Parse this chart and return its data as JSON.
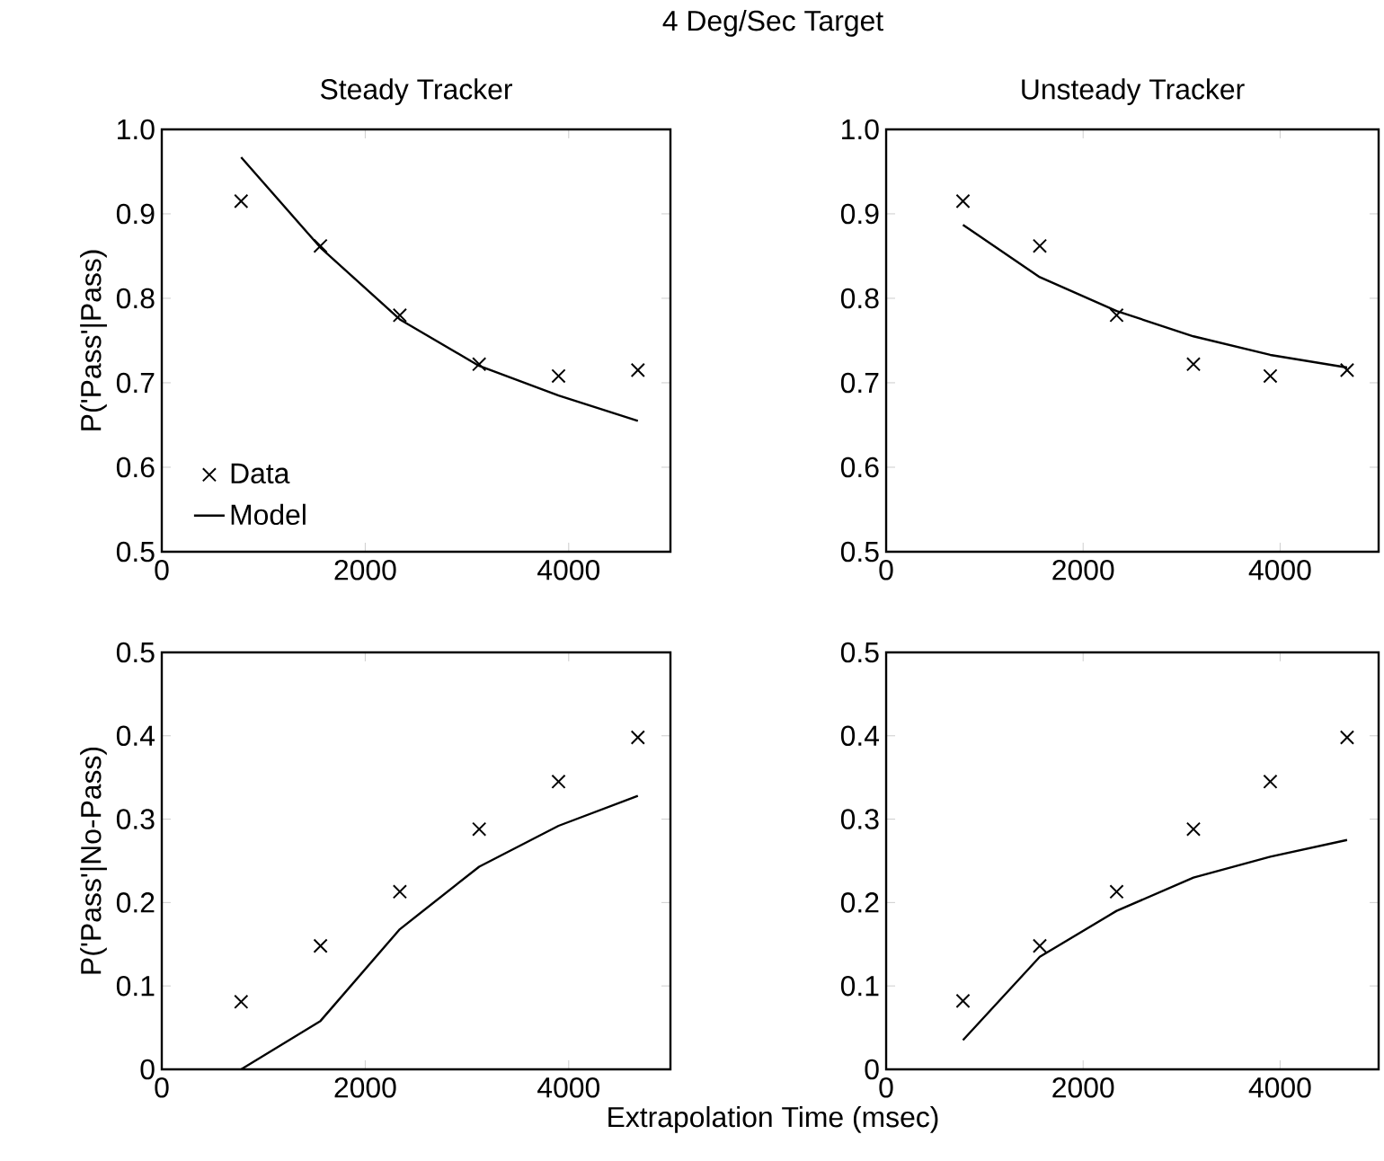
{
  "chart_data": [
    {
      "type": "line",
      "title": "Steady Tracker",
      "ylabel": "P('Pass'|Pass)",
      "annotations": [
        "4 Deg/Sec Target"
      ],
      "x": [
        780,
        1560,
        2340,
        3120,
        3900,
        4680
      ],
      "xlim": [
        0,
        5000
      ],
      "xticks": [
        0,
        2000,
        4000
      ],
      "ylim": [
        0.5,
        1
      ],
      "yticks": [
        0.5,
        0.6,
        0.7,
        0.8,
        0.9,
        {
          "value": 1,
          "label": "1.0"
        }
      ],
      "legend": "bottom left",
      "series": [
        {
          "name": "Data",
          "type": "scatter",
          "marker": "cross",
          "color": "#000000",
          "values": [
            0.915,
            0.862,
            0.78,
            0.722,
            0.708,
            0.715
          ]
        },
        {
          "name": "Model",
          "color": "#000000",
          "values": [
            0.967,
            0.86,
            0.775,
            0.72,
            0.685,
            0.655
          ]
        }
      ]
    },
    {
      "type": "line",
      "title": "Unsteady Tracker",
      "x": [
        780,
        1560,
        2340,
        3120,
        3900,
        4680
      ],
      "xlim": [
        0,
        5000
      ],
      "xticks": [
        0,
        2000,
        4000
      ],
      "ylim": [
        0.5,
        1
      ],
      "yticks": [
        0.5,
        0.6,
        0.7,
        0.8,
        0.9,
        {
          "value": 1,
          "label": "1.0"
        }
      ],
      "series": [
        {
          "type": "scatter",
          "marker": "cross",
          "color": "#000000",
          "values": [
            0.915,
            0.862,
            0.78,
            0.722,
            0.708,
            0.715
          ]
        },
        {
          "color": "#000000",
          "values": [
            0.887,
            0.825,
            0.785,
            0.755,
            0.733,
            0.718
          ]
        }
      ]
    },
    {
      "type": "line",
      "ylabel": "P('Pass'|No-Pass)",
      "xlabel": "Extrapolation Time (msec)",
      "x": [
        780,
        1560,
        2340,
        3120,
        3900,
        4680
      ],
      "xlim": [
        0,
        5000
      ],
      "xticks": [
        0,
        2000,
        4000
      ],
      "ylim": [
        0,
        0.5
      ],
      "yticks": [
        0,
        0.1,
        0.2,
        0.3,
        0.4,
        0.5
      ],
      "series": [
        {
          "type": "scatter",
          "marker": "cross",
          "color": "#000000",
          "values": [
            0.081,
            0.148,
            0.213,
            0.288,
            0.345,
            0.398
          ]
        },
        {
          "color": "#000000",
          "values": [
            0,
            0.058,
            0.168,
            0.243,
            0.292,
            0.328
          ]
        }
      ]
    },
    {
      "type": "line",
      "x": [
        780,
        1560,
        2340,
        3120,
        3900,
        4680
      ],
      "xlim": [
        0,
        5000
      ],
      "xticks": [
        0,
        2000,
        4000
      ],
      "ylim": [
        0,
        0.5
      ],
      "yticks": [
        0,
        0.1,
        0.2,
        0.3,
        0.4,
        0.5
      ],
      "series": [
        {
          "type": "scatter",
          "marker": "cross",
          "color": "#000000",
          "values": [
            0.082,
            0.148,
            0.213,
            0.288,
            0.345,
            0.398
          ]
        },
        {
          "color": "#000000",
          "values": [
            0.035,
            0.135,
            0.19,
            0.23,
            0.255,
            0.275
          ]
        }
      ]
    }
  ]
}
